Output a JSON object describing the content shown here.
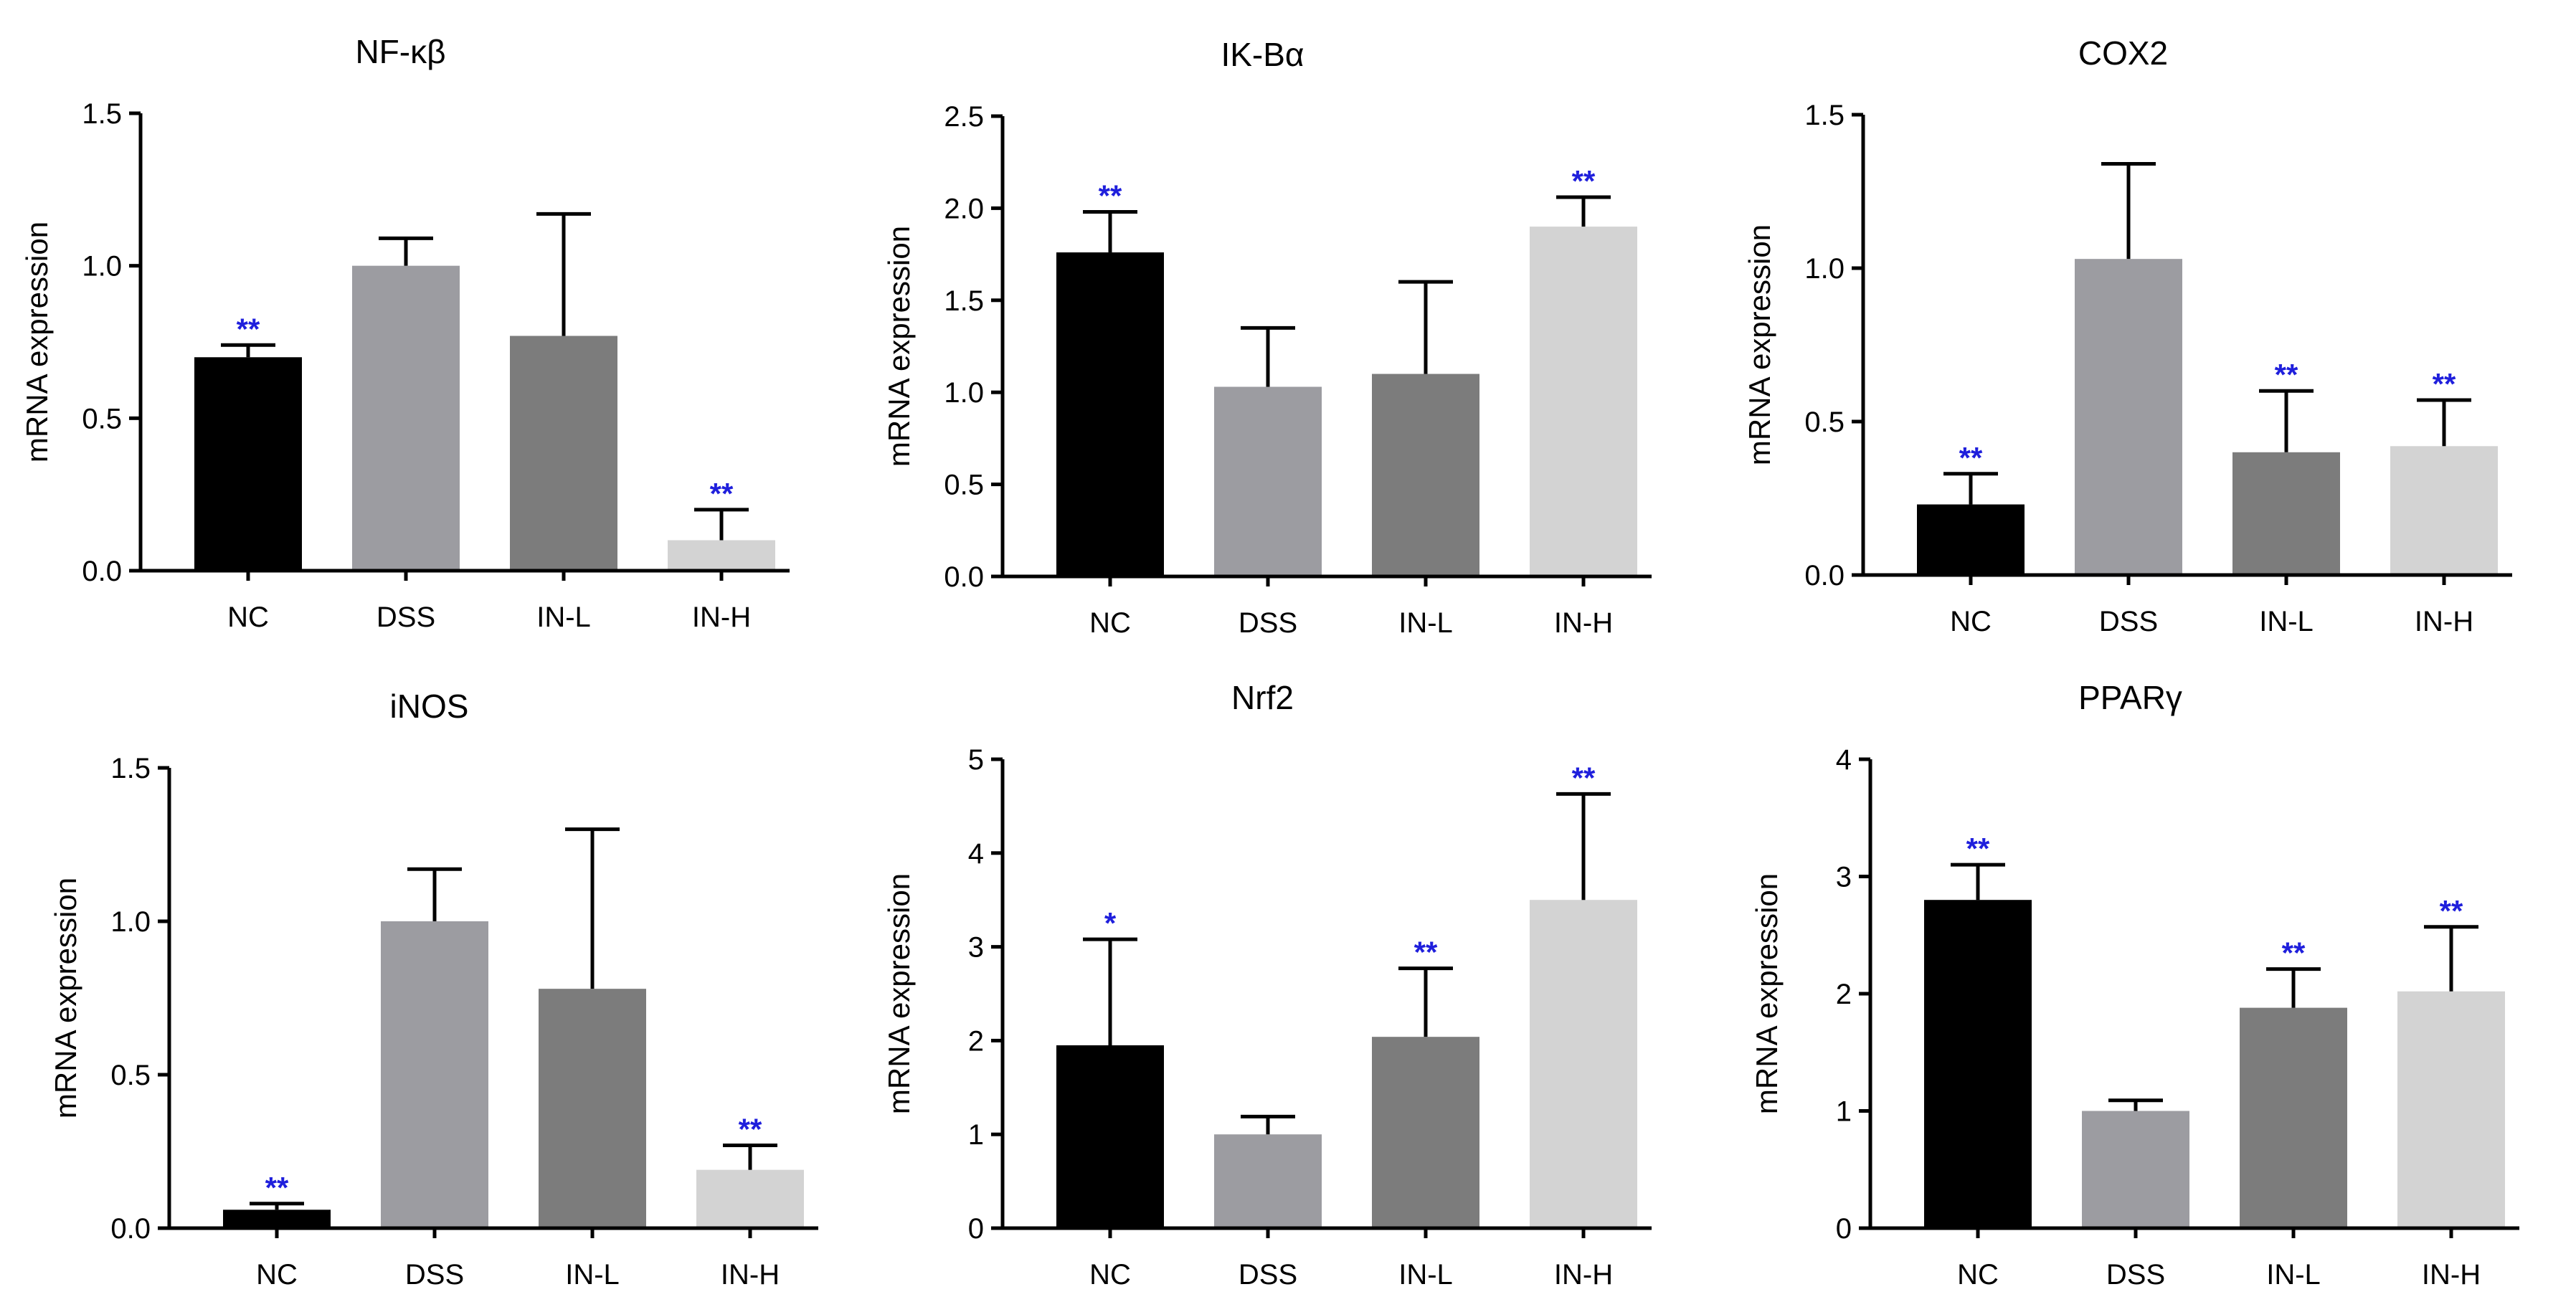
{
  "figure_colors": {
    "axis": "#000000",
    "significance": "#1f1fdc"
  },
  "chart_data": [
    {
      "type": "bar",
      "title": "NF-κβ",
      "xlabel": "",
      "ylabel": "mRNA expression",
      "categories": [
        "NC",
        "DSS",
        "IN-L",
        "IN-H"
      ],
      "values": [
        0.7,
        1.0,
        0.77,
        0.1
      ],
      "errors": [
        0.04,
        0.09,
        0.4,
        0.1
      ],
      "significance": [
        "**",
        "",
        "",
        "**"
      ],
      "colors": [
        "#000000",
        "#9c9ca1",
        "#7c7c7c",
        "#d3d3d3"
      ],
      "ylim": [
        0,
        1.5
      ],
      "yticks": [
        0,
        0.5,
        1.0,
        1.5
      ],
      "ytick_labels": [
        "0.0",
        "0.5",
        "1.0",
        "1.5"
      ]
    },
    {
      "type": "bar",
      "title": "IK-Bα",
      "xlabel": "",
      "ylabel": "mRNA expression",
      "categories": [
        "NC",
        "DSS",
        "IN-L",
        "IN-H"
      ],
      "values": [
        1.76,
        1.03,
        1.1,
        1.9
      ],
      "errors": [
        0.22,
        0.32,
        0.5,
        0.16
      ],
      "significance": [
        "**",
        "",
        "",
        "**"
      ],
      "colors": [
        "#000000",
        "#9c9ca1",
        "#7c7c7c",
        "#d3d3d3"
      ],
      "ylim": [
        0,
        2.5
      ],
      "yticks": [
        0,
        0.5,
        1.0,
        1.5,
        2.0,
        2.5
      ],
      "ytick_labels": [
        "0.0",
        "0.5",
        "1.0",
        "1.5",
        "2.0",
        "2.5"
      ]
    },
    {
      "type": "bar",
      "title": "COX2",
      "xlabel": "",
      "ylabel": "mRNA expression",
      "categories": [
        "NC",
        "DSS",
        "IN-L",
        "IN-H"
      ],
      "values": [
        0.23,
        1.03,
        0.4,
        0.42
      ],
      "errors": [
        0.1,
        0.31,
        0.2,
        0.15
      ],
      "significance": [
        "**",
        "",
        "**",
        "**"
      ],
      "colors": [
        "#000000",
        "#9c9ca1",
        "#7c7c7c",
        "#d3d3d3"
      ],
      "ylim": [
        0,
        1.5
      ],
      "yticks": [
        0,
        0.5,
        1.0,
        1.5
      ],
      "ytick_labels": [
        "0.0",
        "0.5",
        "1.0",
        "1.5"
      ]
    },
    {
      "type": "bar",
      "title": "iNOS",
      "xlabel": "",
      "ylabel": "mRNA expression",
      "categories": [
        "NC",
        "DSS",
        "IN-L",
        "IN-H"
      ],
      "values": [
        0.06,
        1.0,
        0.78,
        0.19
      ],
      "errors": [
        0.02,
        0.17,
        0.52,
        0.08
      ],
      "significance": [
        "**",
        "",
        "",
        "**"
      ],
      "colors": [
        "#000000",
        "#9c9ca1",
        "#7c7c7c",
        "#d3d3d3"
      ],
      "ylim": [
        0,
        1.5
      ],
      "yticks": [
        0,
        0.5,
        1.0,
        1.5
      ],
      "ytick_labels": [
        "0.0",
        "0.5",
        "1.0",
        "1.5"
      ]
    },
    {
      "type": "bar",
      "title": "Nrf2",
      "xlabel": "",
      "ylabel": "mRNA expression",
      "categories": [
        "NC",
        "DSS",
        "IN-L",
        "IN-H"
      ],
      "values": [
        1.95,
        1.0,
        2.04,
        3.5
      ],
      "errors": [
        1.13,
        0.19,
        0.73,
        1.13
      ],
      "significance": [
        "*",
        "",
        "**",
        "**"
      ],
      "colors": [
        "#000000",
        "#9c9ca1",
        "#7c7c7c",
        "#d3d3d3"
      ],
      "ylim": [
        0,
        5
      ],
      "yticks": [
        0,
        1,
        2,
        3,
        4,
        5
      ],
      "ytick_labels": [
        "0",
        "1",
        "2",
        "3",
        "4",
        "5"
      ]
    },
    {
      "type": "bar",
      "title": "PPARγ",
      "xlabel": "",
      "ylabel": "mRNA expression",
      "categories": [
        "NC",
        "DSS",
        "IN-L",
        "IN-H"
      ],
      "values": [
        2.8,
        1.0,
        1.88,
        2.02
      ],
      "errors": [
        0.3,
        0.09,
        0.33,
        0.55
      ],
      "significance": [
        "**",
        "",
        "**",
        "**"
      ],
      "colors": [
        "#000000",
        "#9c9ca1",
        "#7c7c7c",
        "#d3d3d3"
      ],
      "ylim": [
        0,
        4
      ],
      "yticks": [
        0,
        1,
        2,
        3,
        4
      ],
      "ytick_labels": [
        "0",
        "1",
        "2",
        "3",
        "4"
      ]
    }
  ]
}
